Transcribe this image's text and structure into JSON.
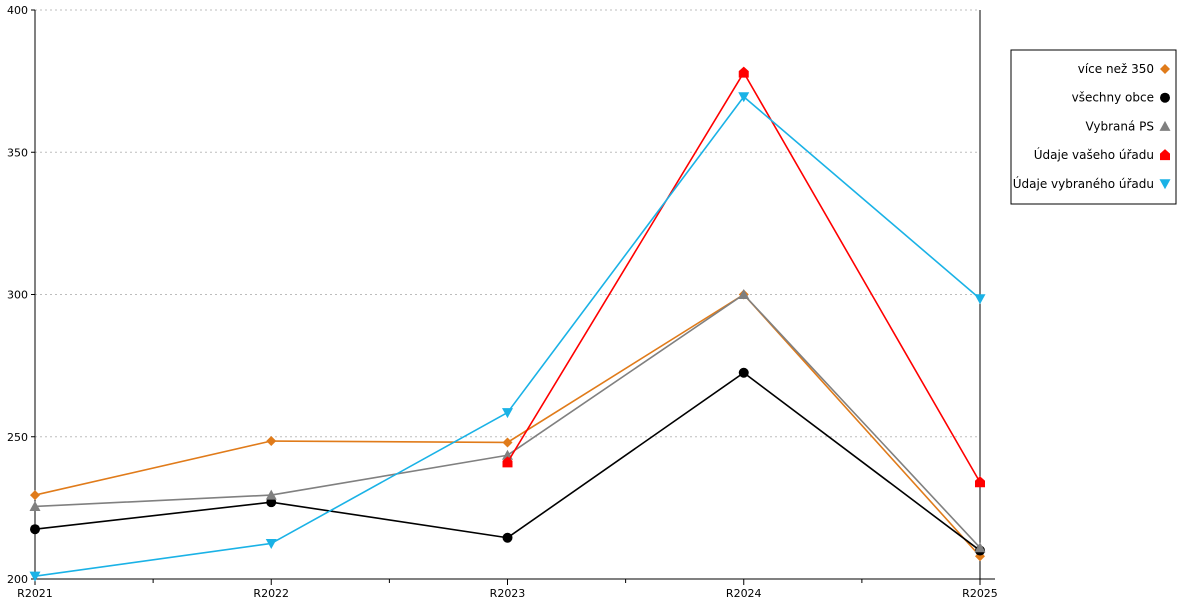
{
  "chart_data": {
    "type": "line",
    "categories": [
      "R2021",
      "R2022",
      "R2023",
      "R2024",
      "R2025"
    ],
    "ylim": [
      200,
      400
    ],
    "yticks": [
      200,
      250,
      300,
      350,
      400
    ],
    "grid": true,
    "legend_position": "top-right",
    "series": [
      {
        "name": "více než 350",
        "color": "#e07b1a",
        "marker": "diamond",
        "values": [
          229.5,
          248.5,
          248,
          300,
          208
        ]
      },
      {
        "name": "všechny obce",
        "color": "#000000",
        "marker": "circle",
        "values": [
          217.5,
          227,
          214.5,
          272.5,
          210
        ]
      },
      {
        "name": "Vybraná PS",
        "color": "#808080",
        "marker": "triangle-up",
        "values": [
          225.5,
          229.5,
          243.5,
          300,
          211
        ]
      },
      {
        "name": "Údaje vašeho úřadu",
        "color": "#ff0000",
        "marker": "house",
        "values": [
          null,
          null,
          241,
          378,
          234
        ]
      },
      {
        "name": "Údaje vybraného úřadu",
        "color": "#1ab2e6",
        "marker": "triangle-down",
        "values": [
          201,
          212.5,
          258.5,
          369.5,
          298.5
        ]
      }
    ]
  }
}
